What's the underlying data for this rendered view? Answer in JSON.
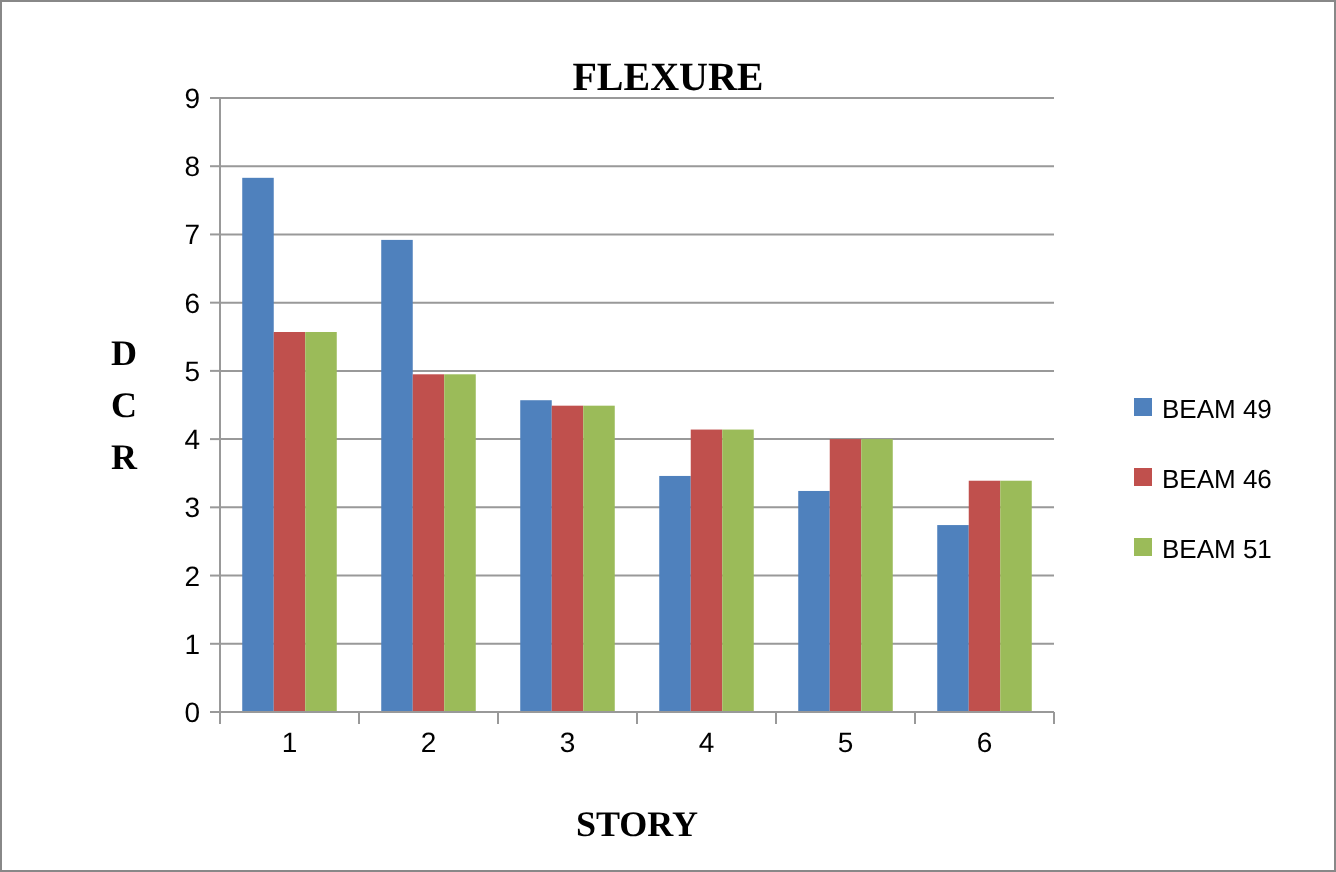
{
  "chart_data": {
    "type": "bar",
    "title": "FLEXURE",
    "xlabel": "STORY",
    "ylabel": "DCR",
    "categories": [
      "1",
      "2",
      "3",
      "4",
      "5",
      "6"
    ],
    "series": [
      {
        "name": "BEAM 49",
        "color": "#4f81bd",
        "values": [
          7.83,
          6.92,
          4.57,
          3.46,
          3.24,
          2.74
        ]
      },
      {
        "name": "BEAM 46",
        "color": "#c0504d",
        "values": [
          5.57,
          4.95,
          4.49,
          4.14,
          4.0,
          3.39
        ]
      },
      {
        "name": "BEAM 51",
        "color": "#9bbb59",
        "values": [
          5.57,
          4.95,
          4.49,
          4.14,
          4.0,
          3.39
        ]
      }
    ],
    "ylim": [
      0,
      9
    ],
    "yticks": [
      0,
      1,
      2,
      3,
      4,
      5,
      6,
      7,
      8,
      9
    ],
    "grid": "y",
    "legend": "right"
  }
}
